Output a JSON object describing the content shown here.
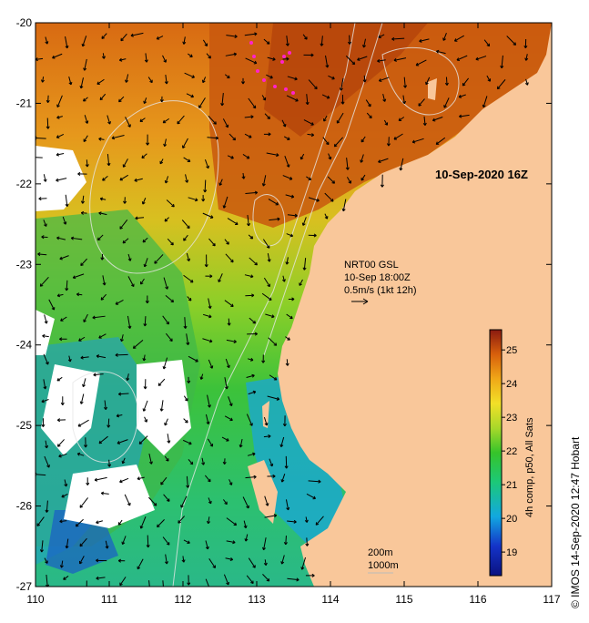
{
  "map": {
    "title": "10-Sep-2020 16Z",
    "lon_ticks": [
      "110",
      "111",
      "112",
      "113",
      "114",
      "115",
      "116",
      "117"
    ],
    "lat_ticks": [
      "-20",
      "-21",
      "-22",
      "-23",
      "-24",
      "-25",
      "-26",
      "-27"
    ],
    "lon_range": [
      110,
      117
    ],
    "lat_range": [
      -27,
      -20
    ]
  },
  "current_legend": {
    "line1": "NRT00 GSL",
    "line2": "10-Sep 18:00Z",
    "line3": "0.5m/s (1kt 12h)"
  },
  "contour_legend": {
    "line1": "200m",
    "line2": "1000m"
  },
  "colorbar": {
    "label": "4h comp, p50, All Sats",
    "ticks": [
      "19",
      "20",
      "21",
      "22",
      "23",
      "24",
      "25"
    ],
    "range": [
      18.3,
      25.6
    ]
  },
  "credit": "© IMOS 14-Sep-2020 12:47 Hobart",
  "colors": {
    "land": "#f9c79a",
    "cloud": "#ffffff",
    "warm": "#c8500a",
    "cool": "#1a7fd6"
  }
}
